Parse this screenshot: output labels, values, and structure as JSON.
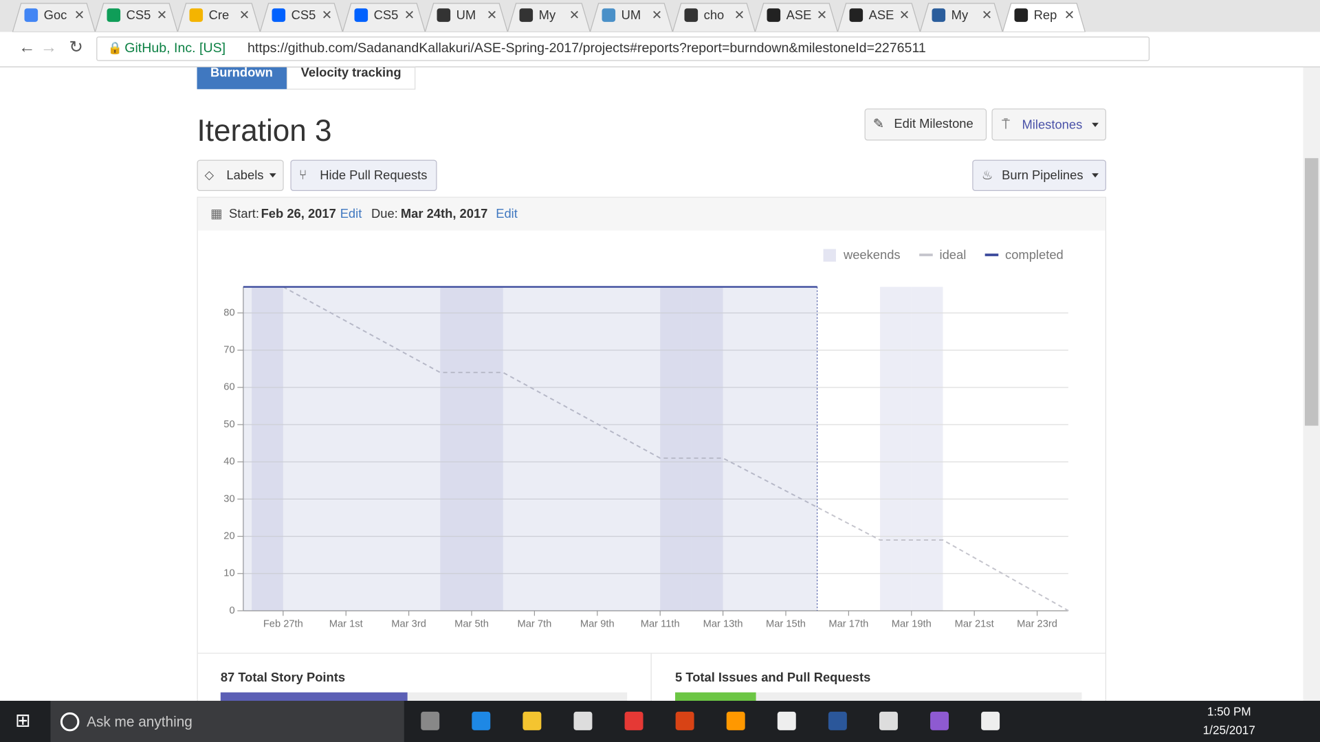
{
  "browser": {
    "tabs": [
      "Goc",
      "CS5",
      "Cre",
      "CS5",
      "CS5",
      "UM",
      "My",
      "UM",
      "cho",
      "ASE",
      "ASE",
      "My",
      "Rep"
    ],
    "site": "GitHub, Inc. [US]",
    "url": "https://github.com/SadanandKallakuri/ASE-Spring-2017/projects#reports?report=burndown&milestoneId=2276511"
  },
  "page": {
    "tabs": [
      "Burndown",
      "Velocity tracking"
    ],
    "title": "Iteration 3",
    "edit_milestone": "Edit Milestone",
    "milestones": "Milestones",
    "labels": "Labels",
    "hide_prs": "Hide Pull Requests",
    "burn_pipelines": "Burn Pipelines",
    "start_label": "Start:",
    "start": "Feb 26, 2017",
    "edit": "Edit",
    "due_label": "Due:",
    "due": "Mar 24th, 2017",
    "story_points": "87 Total Story Points",
    "issues": "5 Total Issues and Pull Requests"
  },
  "taskbar": {
    "search": "Ask me anything",
    "time": "1:50 PM",
    "date": "1/25/2017"
  },
  "chart_data": {
    "type": "line",
    "categories": [
      null,
      "Feb 27th",
      null,
      "Mar 1st",
      null,
      "Mar 3rd",
      null,
      "Mar 5th",
      null,
      "Mar 7th",
      null,
      "Mar 9th",
      null,
      "Mar 11th",
      null,
      "Mar 13th",
      null,
      "Mar 15th",
      null,
      "Mar 17th",
      null,
      "Mar 19th",
      null,
      "Mar 21st",
      null,
      "Mar 23rd",
      null
    ],
    "weekends": {
      "name": "weekends",
      "color": "#e4e5f2",
      "days": [
        0,
        6,
        7,
        13,
        14,
        20,
        21
      ]
    },
    "series": [
      {
        "name": "ideal",
        "color": "#c4c4cc",
        "values": [
          null,
          87,
          82.4,
          77.8,
          73.2,
          68.6,
          64,
          64,
          64,
          59.4,
          54.8,
          50.2,
          45.6,
          41,
          41,
          41,
          36.6,
          32.2,
          27.8,
          23.4,
          19,
          19,
          19,
          14.25,
          9.5,
          4.75,
          0
        ]
      },
      {
        "name": "completed",
        "color": "#3b4a9c",
        "values": [
          87,
          87,
          87,
          87,
          87,
          87,
          87,
          87,
          87,
          87,
          87,
          87,
          87,
          87,
          87,
          87,
          87,
          87,
          87,
          null,
          null,
          null,
          null,
          null,
          null,
          null,
          null
        ]
      }
    ],
    "ylim": [
      0,
      87
    ],
    "yticks": [
      0,
      10,
      20,
      30,
      40,
      50,
      60,
      70,
      80
    ],
    "grid": true
  }
}
